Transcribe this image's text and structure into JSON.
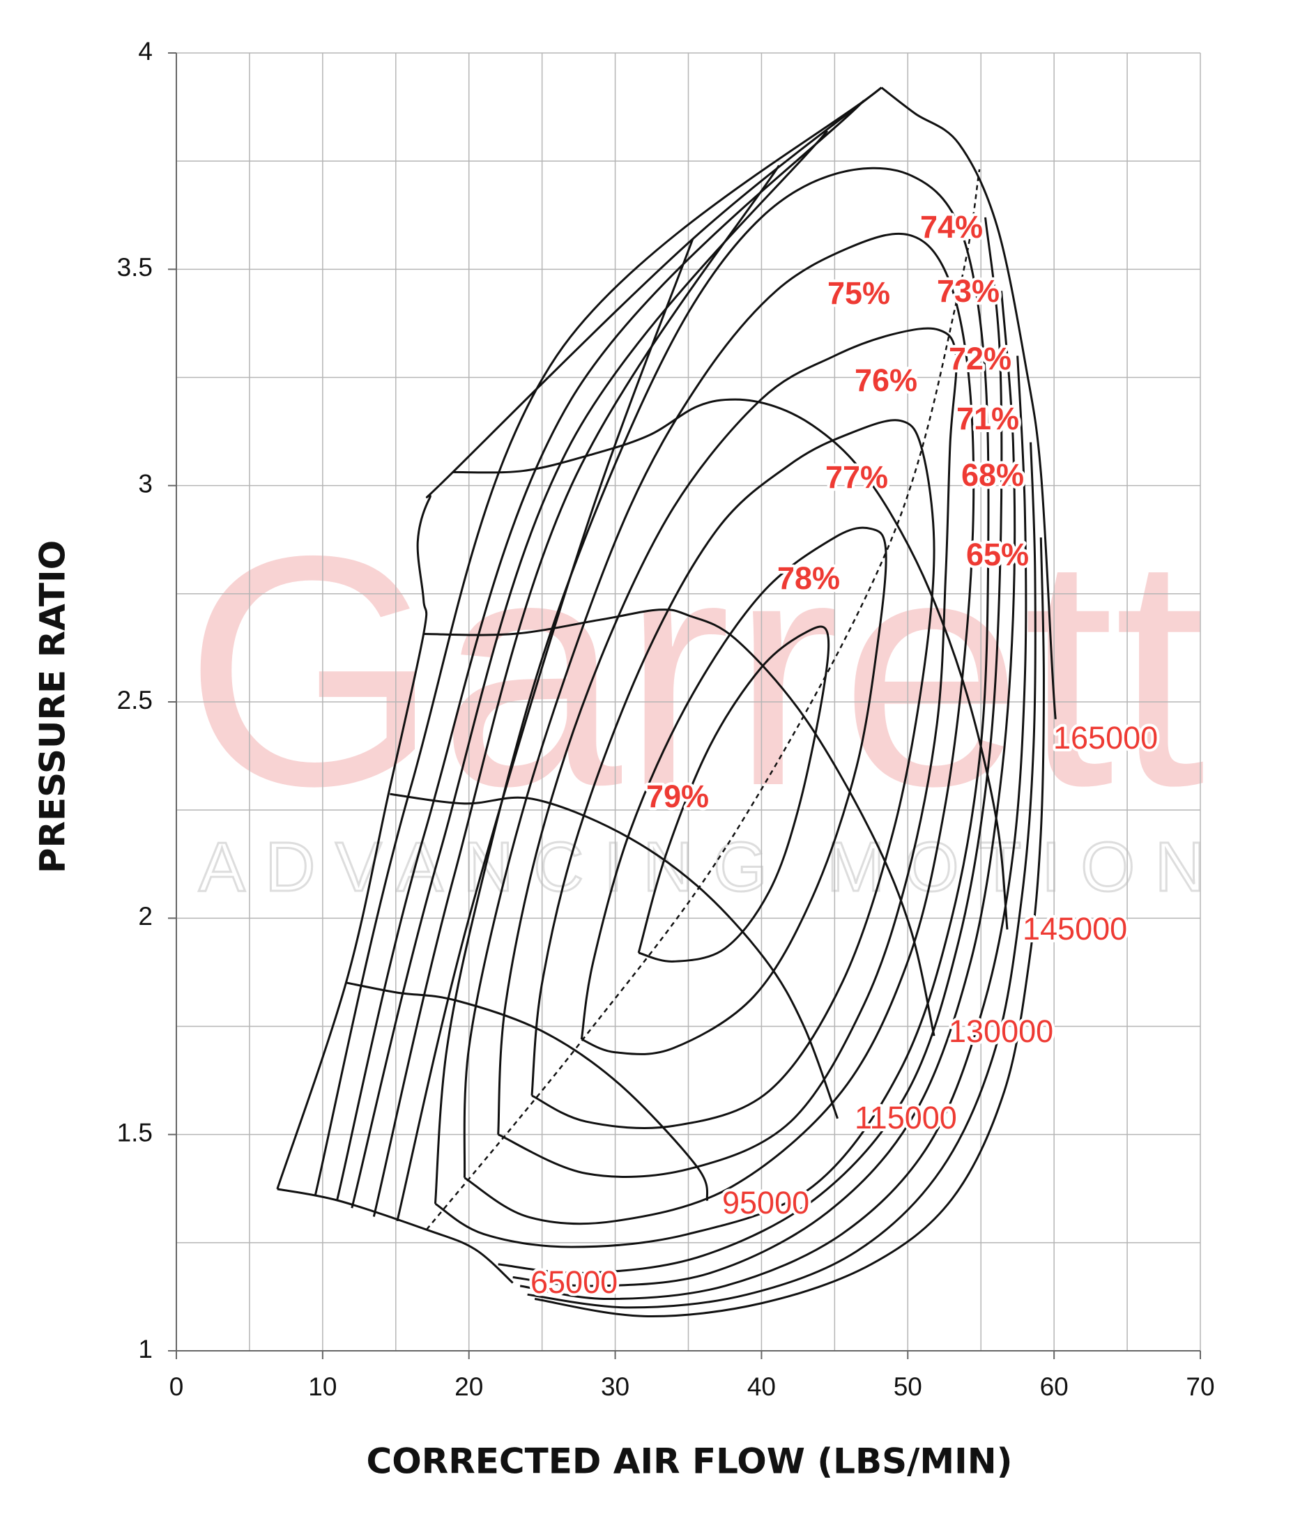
{
  "chart_data": {
    "type": "compressor_map",
    "xlabel": "CORRECTED AIR FLOW (LBS/MIN)",
    "ylabel": "PRESSURE RATIO",
    "xlim": [
      0,
      70
    ],
    "ylim": [
      1,
      4
    ],
    "xticks": [
      0,
      10,
      20,
      30,
      40,
      50,
      60,
      70
    ],
    "yticks": [
      1,
      1.5,
      2,
      2.5,
      3,
      3.5,
      4
    ],
    "x_gridlines": [
      0,
      5,
      10,
      15,
      20,
      25,
      30,
      35,
      40,
      45,
      50,
      55,
      60,
      65,
      70
    ],
    "y_gridlines": [
      1,
      1.25,
      1.5,
      1.75,
      2,
      2.25,
      2.5,
      2.75,
      3,
      3.25,
      3.5,
      3.75,
      4
    ],
    "grid": true,
    "line_color": "#111111",
    "label_color": "#ee3a33",
    "watermark": {
      "brand": "Garrett",
      "tagline": "ADVANCING MOTION",
      "brand_color": "#f8d3d3",
      "tagline_color": "#dddddd"
    },
    "surge_line": {
      "x": [
        6.9,
        11.6,
        14.5,
        16.9,
        16.9,
        16.5,
        17.3,
        18.9,
        35.3,
        48.2
      ],
      "y": [
        1.374,
        1.851,
        2.287,
        2.657,
        2.735,
        2.87,
        2.97,
        3.031,
        3.57,
        3.92
      ]
    },
    "peak_efficiency_line": {
      "x": [
        17.1,
        27.7,
        38.2,
        48.8,
        53.5,
        54.9
      ],
      "y": [
        1.28,
        1.716,
        2.198,
        2.869,
        3.45,
        3.731
      ]
    },
    "speed_lines": [
      {
        "name": "65000",
        "x": [
          6.9,
          11.1,
          17.1,
          20.4,
          23.0
        ],
        "y": [
          1.374,
          1.347,
          1.28,
          1.235,
          1.157
        ]
      },
      {
        "name": "95000",
        "x": [
          11.6,
          15.1,
          19.1,
          25.0,
          30.3,
          35.6,
          36.3
        ],
        "y": [
          1.851,
          1.828,
          1.81,
          1.739,
          1.616,
          1.425,
          1.347
        ]
      },
      {
        "name": "115000",
        "x": [
          14.6,
          19.7,
          24.3,
          30.3,
          35.6,
          40.2,
          42.9,
          45.2
        ],
        "y": [
          2.287,
          2.265,
          2.276,
          2.198,
          2.075,
          1.907,
          1.75,
          1.537
        ]
      },
      {
        "name": "130000",
        "x": [
          16.9,
          23.0,
          29.0,
          33.0,
          35.0,
          38.2,
          42.9,
          47.5,
          50.2,
          51.8
        ],
        "y": [
          2.657,
          2.657,
          2.69,
          2.713,
          2.7,
          2.646,
          2.466,
          2.198,
          1.974,
          1.728
        ]
      },
      {
        "name": "145000",
        "x": [
          18.9,
          23.7,
          28.3,
          32.3,
          35.6,
          38.2,
          40.9,
          43.5,
          46.2,
          48.8,
          51.5,
          54.1,
          56.1,
          56.8
        ],
        "y": [
          3.031,
          3.034,
          3.071,
          3.116,
          3.183,
          3.199,
          3.183,
          3.139,
          3.06,
          2.937,
          2.757,
          2.511,
          2.22,
          1.974
        ]
      },
      {
        "name": "165000",
        "x": [
          48.2,
          50.5,
          53.5,
          56.1,
          58.1,
          59.1,
          59.9,
          60.1
        ],
        "y": [
          3.92,
          3.86,
          3.79,
          3.6,
          3.27,
          3.03,
          2.56,
          2.46
        ]
      }
    ],
    "efficiency_islands": [
      {
        "name": "79%",
        "x": [
          31.6,
          33.5,
          36.5,
          40,
          43,
          44.5,
          44.2,
          42.5,
          40.5,
          37.5,
          34,
          31.6
        ],
        "y": [
          1.92,
          2.15,
          2.4,
          2.58,
          2.66,
          2.66,
          2.52,
          2.25,
          2.06,
          1.93,
          1.9,
          1.92
        ]
      },
      {
        "name": "78%",
        "x": [
          27.7,
          28.5,
          31,
          35,
          40,
          45,
          47.5,
          48.5,
          48,
          46.5,
          43.5,
          39.5,
          34,
          30,
          27.7
        ],
        "y": [
          1.72,
          1.9,
          2.2,
          2.5,
          2.75,
          2.88,
          2.9,
          2.85,
          2.65,
          2.35,
          2.05,
          1.82,
          1.7,
          1.69,
          1.72
        ]
      },
      {
        "name": "77%",
        "x": [
          24.3,
          25,
          27.5,
          32,
          37,
          42,
          46,
          49.5,
          51,
          51.8,
          51,
          49,
          45.5,
          40.5,
          34,
          28,
          24.3
        ],
        "y": [
          1.59,
          1.85,
          2.2,
          2.6,
          2.9,
          3.05,
          3.12,
          3.15,
          3.08,
          2.85,
          2.55,
          2.2,
          1.85,
          1.6,
          1.52,
          1.53,
          1.59
        ]
      },
      {
        "name": "76%",
        "x": [
          22,
          22.5,
          25,
          29,
          34,
          40,
          45,
          49,
          52.1,
          53.3,
          52.9,
          52.6,
          52,
          50,
          47,
          42,
          35,
          28,
          22
        ],
        "y": [
          1.5,
          1.8,
          2.2,
          2.6,
          2.95,
          3.2,
          3.3,
          3.35,
          3.36,
          3.3,
          3.1,
          2.8,
          2.45,
          2.1,
          1.8,
          1.53,
          1.42,
          1.41,
          1.5
        ]
      },
      {
        "name": "75%",
        "x": [
          19.7,
          20,
          22.5,
          26,
          31,
          36,
          41,
          46,
          50,
          52.5,
          54,
          54.5,
          54,
          52.5,
          50,
          45.5,
          38,
          30,
          24,
          19.7
        ],
        "y": [
          1.4,
          1.7,
          2.1,
          2.5,
          2.95,
          3.25,
          3.45,
          3.55,
          3.58,
          3.5,
          3.3,
          3.0,
          2.65,
          2.25,
          1.9,
          1.6,
          1.38,
          1.3,
          1.31,
          1.4
        ]
      },
      {
        "name": "74%",
        "x": [
          17.7,
          18.5,
          21,
          25,
          30,
          35,
          40,
          45,
          50,
          53.5,
          55.2,
          55.5,
          55,
          53,
          49.5,
          43.5,
          35,
          27,
          21,
          17.7
        ],
        "y": [
          1.34,
          1.7,
          2.1,
          2.6,
          3.05,
          3.4,
          3.62,
          3.72,
          3.72,
          3.6,
          3.3,
          2.85,
          2.4,
          2.0,
          1.65,
          1.38,
          1.27,
          1.24,
          1.27,
          1.34
        ]
      },
      {
        "name": "73%",
        "x": [
          15.1,
          20,
          28,
          35.3,
          null,
          55.3,
          56.3,
          56.3,
          55.5,
          53.5,
          50,
          44,
          36,
          28,
          22
        ],
        "y": [
          1.3,
          2.0,
          2.9,
          3.57,
          null,
          3.62,
          3.3,
          2.8,
          2.35,
          1.95,
          1.6,
          1.36,
          1.22,
          1.18,
          1.2
        ]
      },
      {
        "name": "72%",
        "x": [
          13.5,
          19,
          27,
          41.2,
          null,
          56.4,
          57.2,
          57.2,
          56.3,
          54.3,
          50.5,
          44.5,
          36.5,
          28.5,
          23
        ],
        "y": [
          1.31,
          2.1,
          3.0,
          3.74,
          null,
          3.45,
          3.1,
          2.7,
          2.3,
          1.9,
          1.55,
          1.32,
          1.18,
          1.15,
          1.17
        ]
      },
      {
        "name": "71%",
        "x": [
          12,
          18,
          27,
          44.5,
          null,
          57.5,
          58,
          58,
          57.2,
          55.2,
          51.5,
          45.5,
          37.5,
          29.5,
          23.5
        ],
        "y": [
          1.33,
          2.15,
          3.1,
          3.82,
          null,
          3.3,
          2.95,
          2.55,
          2.15,
          1.8,
          1.48,
          1.27,
          1.15,
          1.12,
          1.15
        ]
      },
      {
        "name": "68%",
        "x": [
          11,
          17,
          27,
          47,
          null,
          58.4,
          58.7,
          58.6,
          57.8,
          56,
          52.3,
          46.5,
          39,
          31,
          24
        ],
        "y": [
          1.35,
          2.2,
          3.2,
          3.89,
          null,
          3.1,
          2.8,
          2.4,
          2.05,
          1.7,
          1.42,
          1.23,
          1.13,
          1.1,
          1.13
        ]
      },
      {
        "name": "65%",
        "x": [
          9.5,
          16,
          26,
          48.2,
          null,
          59.1,
          59.3,
          59.1,
          58.3,
          56.6,
          53,
          47.5,
          40,
          32,
          24.5
        ],
        "y": [
          1.36,
          2.3,
          3.3,
          3.92,
          null,
          2.88,
          2.55,
          2.2,
          1.9,
          1.6,
          1.35,
          1.2,
          1.11,
          1.08,
          1.12
        ]
      }
    ]
  }
}
